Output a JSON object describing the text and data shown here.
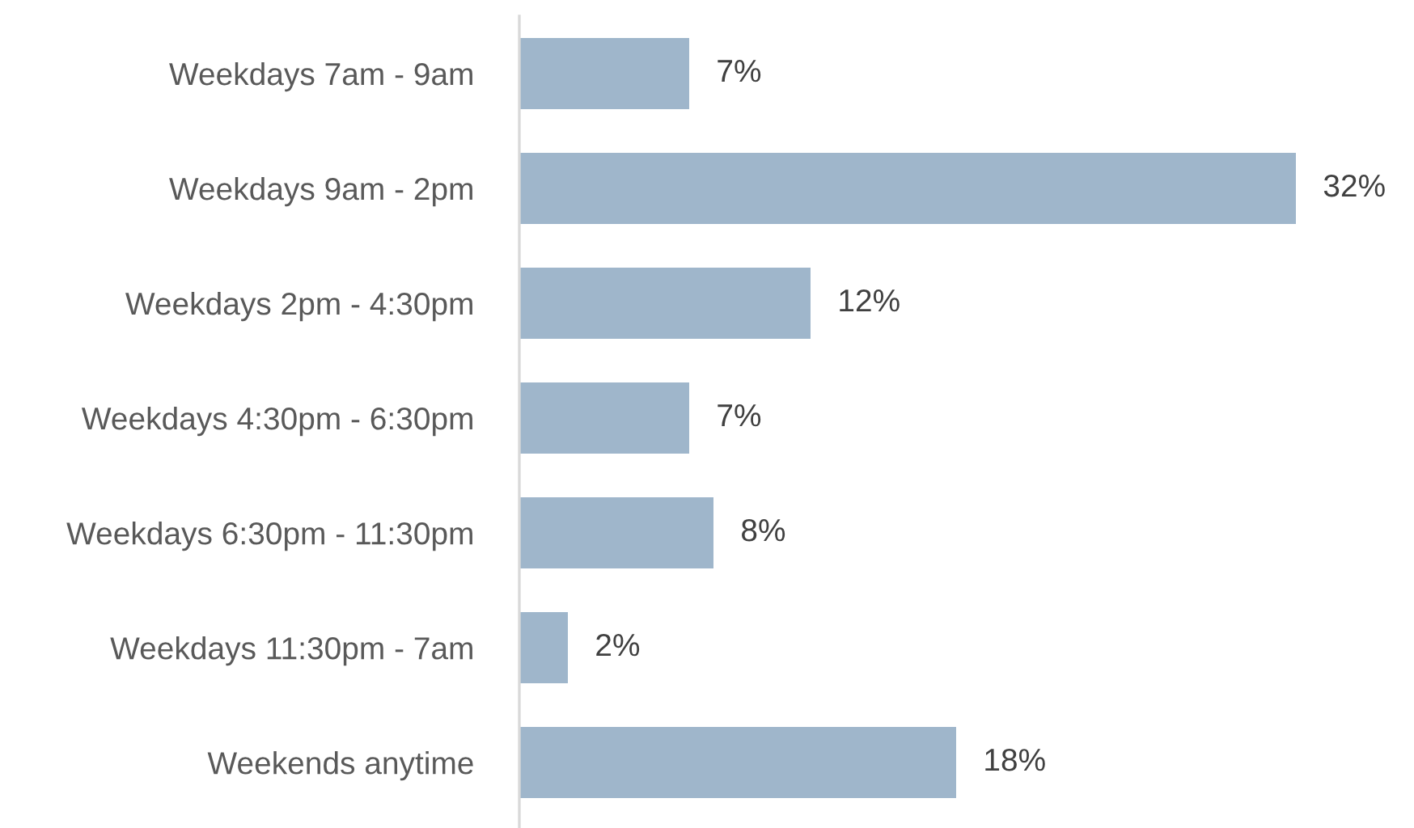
{
  "chart_data": {
    "type": "bar",
    "orientation": "horizontal",
    "categories": [
      "Weekdays 7am - 9am",
      "Weekdays 9am - 2pm",
      "Weekdays 2pm - 4:30pm",
      "Weekdays 4:30pm - 6:30pm",
      "Weekdays 6:30pm - 11:30pm",
      "Weekdays 11:30pm - 7am",
      "Weekends anytime"
    ],
    "values": [
      7,
      32,
      12,
      7,
      8,
      2,
      18
    ],
    "value_labels": [
      "7%",
      "32%",
      "12%",
      "7%",
      "8%",
      "2%",
      "18%"
    ],
    "color": "#9fb6cb",
    "grid": false,
    "legend": false
  }
}
